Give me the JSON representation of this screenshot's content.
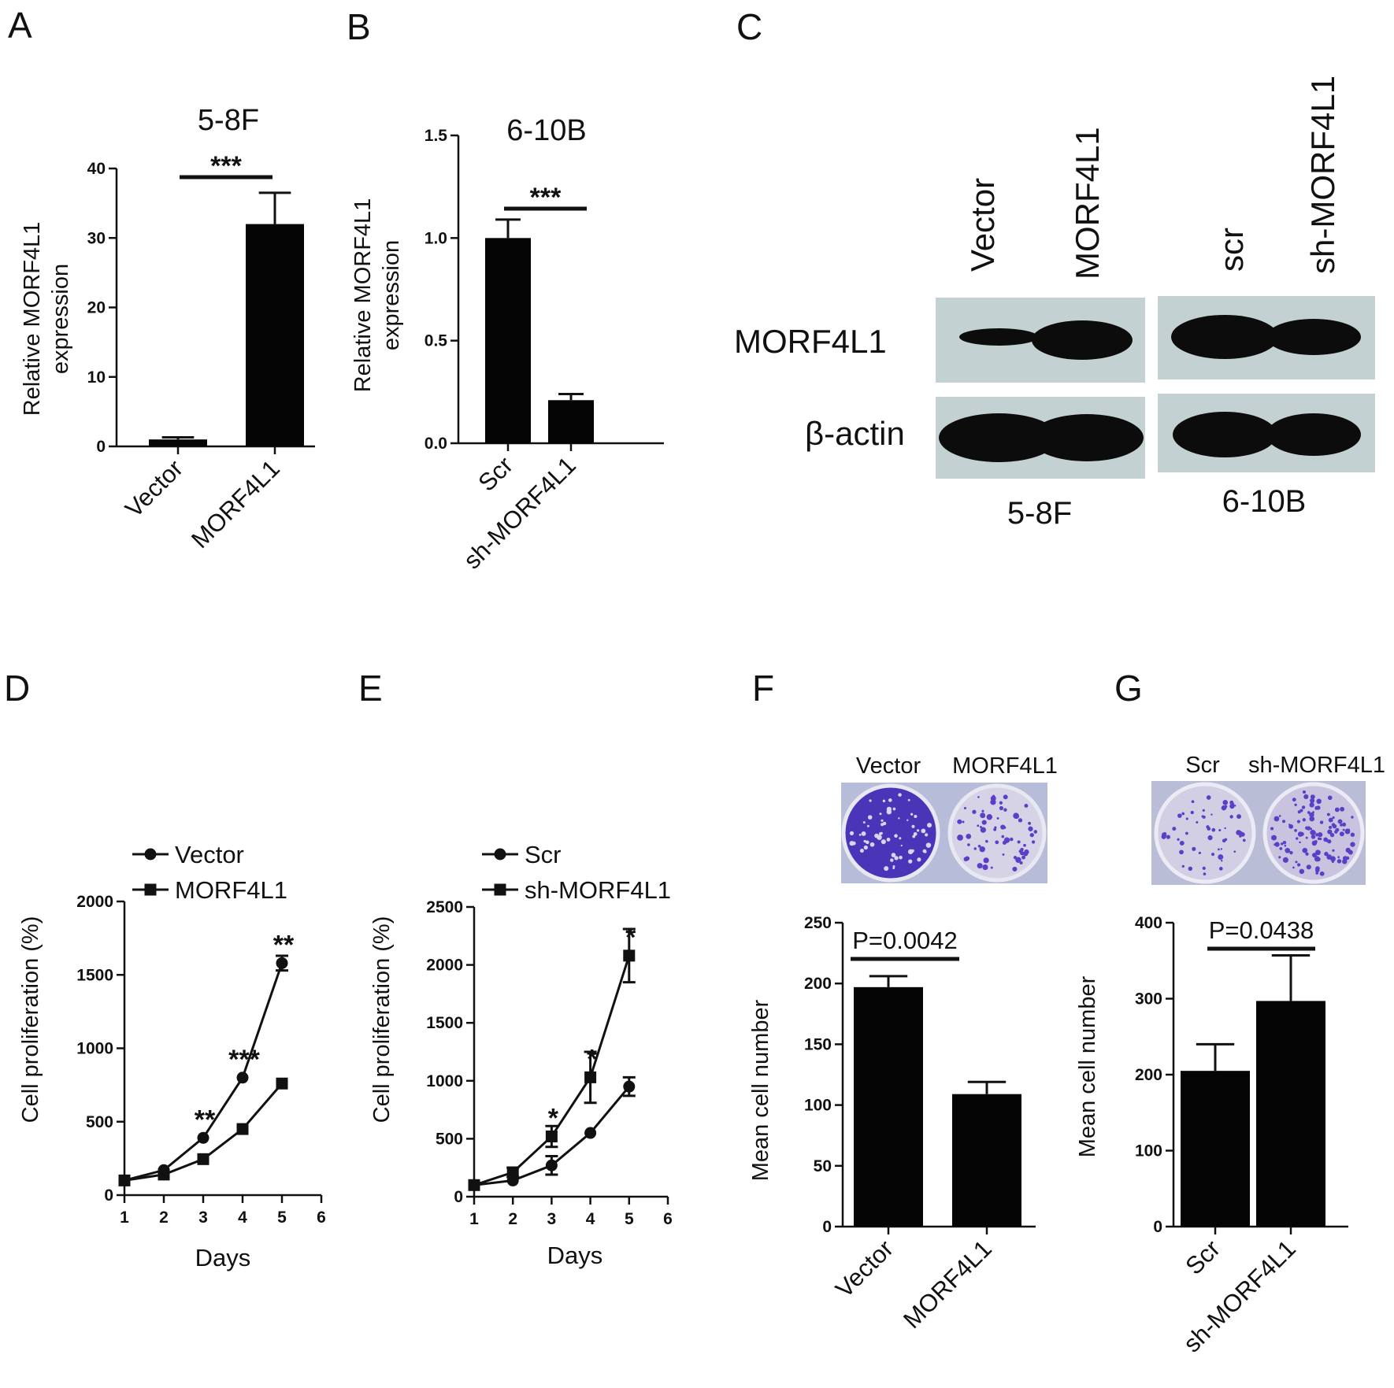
{
  "colors": {
    "ink": "#111111",
    "bar": "#050505",
    "blot_bg": "#c4d1d2",
    "band": "#0c0c0c",
    "plate_bg": "#b7bcd8",
    "colony": "#5b3fc7"
  },
  "panels": [
    "A",
    "B",
    "C",
    "D",
    "E",
    "F",
    "G"
  ],
  "chart_data": [
    {
      "id": "A",
      "type": "bar",
      "title": "5-8F",
      "categories": [
        "Vector",
        "MORF4L1"
      ],
      "values": [
        1,
        32
      ],
      "errors": [
        0.3,
        4.5
      ],
      "ylabel_lines": [
        "Relative MORF4L1",
        "expression"
      ],
      "ylim": [
        0,
        40
      ],
      "yticks": [
        0,
        10,
        20,
        30,
        40
      ],
      "ytick_labels": [
        "0",
        "10",
        "20",
        "30",
        "40"
      ],
      "significance": "***"
    },
    {
      "id": "B",
      "type": "bar",
      "title": "6-10B",
      "categories": [
        "Scr",
        "sh-MORF4L1"
      ],
      "values": [
        1.0,
        0.21
      ],
      "errors": [
        0.09,
        0.03
      ],
      "ylabel_lines": [
        "Relative MORF4L1",
        "expression"
      ],
      "ylim": [
        0,
        1.5
      ],
      "yticks": [
        0,
        0.5,
        1.0,
        1.5
      ],
      "ytick_labels": [
        "0.0",
        "0.5",
        "1.0",
        "1.5"
      ],
      "significance": "***"
    },
    {
      "id": "D",
      "type": "line",
      "xlabel": "Days",
      "ylabel": "Cell proliferation (%)",
      "x": [
        1,
        2,
        3,
        4,
        5
      ],
      "xlim": [
        1,
        6
      ],
      "xticks": [
        1,
        2,
        3,
        4,
        5,
        6
      ],
      "ylim": [
        0,
        2000
      ],
      "yticks": [
        0,
        500,
        1000,
        1500,
        2000
      ],
      "ytick_labels": [
        "0",
        "500",
        "1000",
        "1500",
        "2000"
      ],
      "series": [
        {
          "name": "Vector",
          "marker": "circle",
          "values": [
            100,
            170,
            390,
            800,
            1580
          ],
          "errors": [
            0,
            0,
            0,
            0,
            50
          ]
        },
        {
          "name": "MORF4L1",
          "marker": "square",
          "values": [
            100,
            140,
            245,
            450,
            760
          ],
          "errors": [
            0,
            0,
            0,
            0,
            0
          ]
        }
      ],
      "annotations": [
        {
          "x": 3,
          "text": "**",
          "y": 390
        },
        {
          "x": 4,
          "text": "***",
          "y": 800
        },
        {
          "x": 5,
          "text": "**",
          "y": 1580
        }
      ],
      "legend": "top-left"
    },
    {
      "id": "E",
      "type": "line",
      "xlabel": "Days",
      "ylabel": "Cell proliferation (%)",
      "x": [
        1,
        2,
        3,
        4,
        5
      ],
      "xlim": [
        1,
        6
      ],
      "xticks": [
        1,
        2,
        3,
        4,
        5,
        6
      ],
      "ylim": [
        0,
        2500
      ],
      "yticks": [
        0,
        500,
        1000,
        1500,
        2000,
        2500
      ],
      "ytick_labels": [
        "0",
        "500",
        "1000",
        "1500",
        "2000",
        "2500"
      ],
      "series": [
        {
          "name": "Scr",
          "marker": "circle",
          "values": [
            100,
            140,
            270,
            550,
            950
          ],
          "errors": [
            0,
            0,
            80,
            0,
            80
          ]
        },
        {
          "name": "sh-MORF4L1",
          "marker": "square",
          "values": [
            100,
            210,
            520,
            1030,
            2080
          ],
          "errors": [
            0,
            40,
            90,
            220,
            230
          ]
        }
      ],
      "annotations": [
        {
          "x": 3,
          "text": "*",
          "y": 520
        },
        {
          "x": 4,
          "text": "*",
          "y": 1030
        },
        {
          "x": 5,
          "text": "*",
          "y": 2080
        }
      ],
      "legend": "top-left"
    },
    {
      "id": "F",
      "type": "bar",
      "categories": [
        "Vector",
        "MORF4L1"
      ],
      "values": [
        197,
        109
      ],
      "errors": [
        9,
        10
      ],
      "ylabel": "Mean cell number",
      "ylim": [
        0,
        250
      ],
      "yticks": [
        0,
        50,
        100,
        150,
        200,
        250
      ],
      "ytick_labels": [
        "0",
        "50",
        "100",
        "150",
        "200",
        "250"
      ],
      "pvalue": "P=0.0042",
      "plate_labels": [
        "Vector",
        "MORF4L1"
      ]
    },
    {
      "id": "G",
      "type": "bar",
      "categories": [
        "Scr",
        "sh-MORF4L1"
      ],
      "values": [
        205,
        297
      ],
      "errors": [
        35,
        60
      ],
      "ylabel": "Mean cell number",
      "ylim": [
        0,
        400
      ],
      "yticks": [
        0,
        100,
        200,
        300,
        400
      ],
      "ytick_labels": [
        "0",
        "100",
        "200",
        "300",
        "400"
      ],
      "pvalue": "P=0.0438",
      "plate_labels": [
        "Scr",
        "sh-MORF4L1"
      ]
    }
  ],
  "blot": {
    "lanes_left": [
      "Vector",
      "MORF4L1"
    ],
    "lanes_right": [
      "scr",
      "sh-MORF4L1"
    ],
    "proteins": [
      "MORF4L1",
      "β-actin"
    ],
    "conditions": [
      "5-8F",
      "6-10B"
    ]
  }
}
